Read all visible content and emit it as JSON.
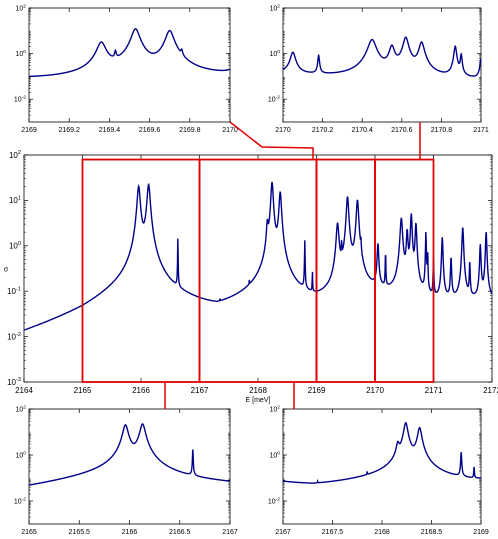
{
  "chart_data": [
    {
      "id": "main",
      "type": "line",
      "xlabel": "E [meV]",
      "ylabel": "σ",
      "xlim": [
        2164,
        2172
      ],
      "ylim_log10": [
        -3,
        2
      ],
      "yscale": "log",
      "xticks": [
        2164,
        2165,
        2166,
        2167,
        2168,
        2169,
        2170,
        2171,
        2172
      ],
      "yticks_exp": [
        -3,
        -2,
        -1,
        0,
        1,
        2
      ],
      "line_color": "#00008B",
      "highlight_color": "#E00000",
      "baseline": [
        [
          2164,
          0.007
        ],
        [
          2165,
          0.025
        ],
        [
          2165.8,
          0.1
        ],
        [
          2167.3,
          0.028
        ],
        [
          2168.2,
          0.09
        ],
        [
          2169.0,
          0.038
        ],
        [
          2170.0,
          0.08
        ],
        [
          2171.0,
          0.05
        ],
        [
          2172,
          0.06
        ]
      ],
      "peaks": [
        [
          2165.96,
          20,
          0.024
        ],
        [
          2166.13,
          22,
          0.024
        ],
        [
          2166.63,
          1.6,
          0.003
        ],
        [
          2167.35,
          0.01,
          0.002
        ],
        [
          2167.85,
          0.05,
          0.002
        ],
        [
          2168.16,
          2.5,
          0.014
        ],
        [
          2168.24,
          25,
          0.018
        ],
        [
          2168.38,
          15,
          0.018
        ],
        [
          2168.8,
          1.2,
          0.004
        ],
        [
          2168.93,
          0.2,
          0.003
        ],
        [
          2169.36,
          3,
          0.02
        ],
        [
          2169.43,
          0.7,
          0.004
        ],
        [
          2169.53,
          12,
          0.018
        ],
        [
          2169.7,
          10,
          0.018
        ],
        [
          2169.76,
          0.6,
          0.004
        ],
        [
          2170.05,
          1,
          0.012
        ],
        [
          2170.18,
          0.7,
          0.004
        ],
        [
          2170.45,
          4,
          0.018
        ],
        [
          2170.55,
          2,
          0.012
        ],
        [
          2170.62,
          5,
          0.012
        ],
        [
          2170.7,
          3,
          0.012
        ],
        [
          2170.87,
          2,
          0.006
        ],
        [
          2170.9,
          0.8,
          0.004
        ],
        [
          2171.0,
          0.5,
          0.005
        ],
        [
          2171.15,
          1.5,
          0.01
        ],
        [
          2171.3,
          0.5,
          0.008
        ],
        [
          2171.5,
          2.5,
          0.012
        ],
        [
          2171.62,
          0.4,
          0.006
        ],
        [
          2171.8,
          1,
          0.01
        ],
        [
          2171.9,
          2,
          0.01
        ]
      ],
      "highlight_ranges": [
        [
          2165,
          2167
        ],
        [
          2167,
          2169
        ],
        [
          2169,
          2170
        ],
        [
          2170,
          2171
        ]
      ],
      "highlight_ylim_log10": [
        -3,
        1.9
      ]
    },
    {
      "id": "inset-top-left",
      "type": "line",
      "yscale": "log",
      "xlim": [
        2169,
        2170
      ],
      "ylim_log10": [
        -3,
        2
      ],
      "xticks": [
        2169,
        2169.2,
        2169.4,
        2169.6,
        2169.8,
        2170
      ],
      "xtick_labels": [
        "2169",
        "2169.2",
        "2169.4",
        "2169.6",
        "2169.8",
        "2170"
      ],
      "yticks_exp": [
        -2,
        0,
        2
      ]
    },
    {
      "id": "inset-top-right",
      "type": "line",
      "yscale": "log",
      "xlim": [
        2170,
        2171
      ],
      "ylim_log10": [
        -3,
        2
      ],
      "xticks": [
        2170,
        2170.2,
        2170.4,
        2170.6,
        2170.8,
        2171
      ],
      "xtick_labels": [
        "2170",
        "2170.2",
        "2170.4",
        "2170.6",
        "2170.8",
        "2171"
      ],
      "yticks_exp": [
        -2,
        0,
        2
      ]
    },
    {
      "id": "inset-bottom-left",
      "type": "line",
      "yscale": "log",
      "xlim": [
        2165,
        2167
      ],
      "ylim_log10": [
        -3,
        2
      ],
      "xticks": [
        2165,
        2165.5,
        2166,
        2166.5,
        2167
      ],
      "xtick_labels": [
        "2165",
        "2165.5",
        "2166",
        "2166.5",
        "2167"
      ],
      "yticks_exp": [
        -2,
        0,
        2
      ]
    },
    {
      "id": "inset-bottom-right",
      "type": "line",
      "yscale": "log",
      "xlim": [
        2167,
        2169
      ],
      "ylim_log10": [
        -3,
        2
      ],
      "xticks": [
        2167,
        2167.5,
        2168,
        2168.5,
        2169
      ],
      "xtick_labels": [
        "2167",
        "2167.5",
        "2168",
        "2168.5",
        "2169"
      ],
      "yticks_exp": [
        -2,
        0,
        2
      ]
    }
  ]
}
